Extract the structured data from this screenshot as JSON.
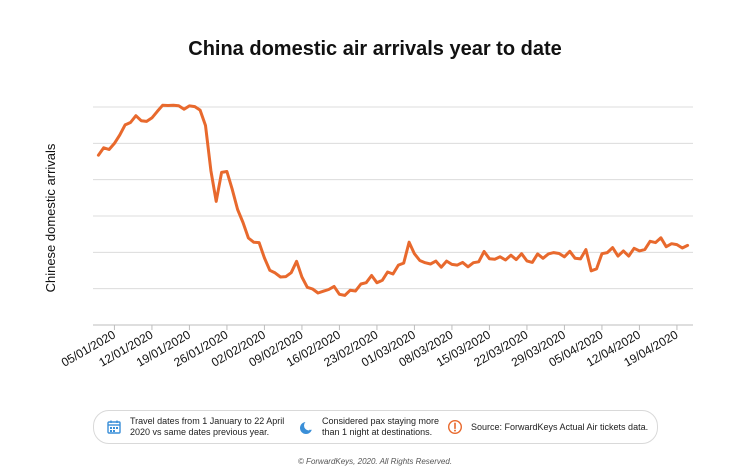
{
  "chart_data": {
    "type": "line",
    "title": "China domestic air arrivals year to date",
    "xlabel": "",
    "ylabel": "Chinese domestic arrivals",
    "x_tick_labels": [
      "05/01/2020",
      "12/01/2020",
      "19/01/2020",
      "26/01/2020",
      "02/02/2020",
      "09/02/2020",
      "16/02/2020",
      "23/02/2020",
      "01/03/2020",
      "08/03/2020",
      "15/03/2020",
      "22/03/2020",
      "29/03/2020",
      "05/04/2020",
      "12/04/2020",
      "19/04/2020"
    ],
    "x_start": "2020-01-01",
    "x_end": "2020-04-22",
    "ylim": [
      0,
      100
    ],
    "grid": true,
    "series_color": "#e8692d",
    "series": [
      {
        "name": "",
        "values": [
          [
            1,
            77.9
          ],
          [
            2,
            81.3
          ],
          [
            3,
            80.5
          ],
          [
            4,
            83.3
          ],
          [
            5,
            87.2
          ],
          [
            6,
            91.8
          ],
          [
            7,
            92.9
          ],
          [
            8,
            96.0
          ],
          [
            9,
            93.7
          ],
          [
            10,
            93.4
          ],
          [
            11,
            95.0
          ],
          [
            12,
            98.0
          ],
          [
            13,
            100.8
          ],
          [
            14,
            100.7
          ],
          [
            15,
            100.8
          ],
          [
            16,
            100.6
          ],
          [
            17,
            99.0
          ],
          [
            18,
            100.5
          ],
          [
            19,
            100.2
          ],
          [
            20,
            98.6
          ],
          [
            21,
            91.5
          ],
          [
            22,
            70.8
          ],
          [
            23,
            56.7
          ],
          [
            24,
            70.0
          ],
          [
            25,
            70.4
          ],
          [
            26,
            62.1
          ],
          [
            27,
            53.0
          ],
          [
            28,
            47.0
          ],
          [
            29,
            39.9
          ],
          [
            30,
            38.0
          ],
          [
            31,
            37.8
          ],
          [
            32,
            30.8
          ],
          [
            33,
            25.1
          ],
          [
            34,
            23.9
          ],
          [
            35,
            22.0
          ],
          [
            36,
            22.2
          ],
          [
            37,
            24.0
          ],
          [
            38,
            29.2
          ],
          [
            39,
            22.0
          ],
          [
            40,
            17.3
          ],
          [
            41,
            16.5
          ],
          [
            42,
            14.7
          ],
          [
            43,
            15.5
          ],
          [
            44,
            16.3
          ],
          [
            45,
            17.7
          ],
          [
            46,
            14.1
          ],
          [
            47,
            13.6
          ],
          [
            48,
            15.9
          ],
          [
            49,
            15.6
          ],
          [
            50,
            18.8
          ],
          [
            51,
            19.4
          ],
          [
            52,
            22.7
          ],
          [
            53,
            19.4
          ],
          [
            54,
            20.5
          ],
          [
            55,
            24.3
          ],
          [
            56,
            23.4
          ],
          [
            57,
            27.5
          ],
          [
            58,
            28.4
          ],
          [
            59,
            38.0
          ],
          [
            60,
            32.7
          ],
          [
            61,
            29.6
          ],
          [
            62,
            28.6
          ],
          [
            63,
            28.0
          ],
          [
            64,
            29.3
          ],
          [
            65,
            26.5
          ],
          [
            66,
            29.3
          ],
          [
            67,
            27.8
          ],
          [
            68,
            27.5
          ],
          [
            69,
            28.7
          ],
          [
            70,
            26.7
          ],
          [
            71,
            28.6
          ],
          [
            72,
            29.0
          ],
          [
            73,
            33.7
          ],
          [
            74,
            30.4
          ],
          [
            75,
            30.2
          ],
          [
            76,
            31.3
          ],
          [
            77,
            29.8
          ],
          [
            78,
            32.0
          ],
          [
            79,
            30.0
          ],
          [
            80,
            32.7
          ],
          [
            81,
            29.4
          ],
          [
            82,
            28.7
          ],
          [
            83,
            32.6
          ],
          [
            84,
            30.6
          ],
          [
            85,
            32.6
          ],
          [
            86,
            33.2
          ],
          [
            87,
            32.8
          ],
          [
            88,
            31.3
          ],
          [
            89,
            33.8
          ],
          [
            90,
            30.6
          ],
          [
            91,
            30.3
          ],
          [
            92,
            34.6
          ],
          [
            93,
            24.8
          ],
          [
            94,
            25.8
          ],
          [
            95,
            32.7
          ],
          [
            96,
            33.2
          ],
          [
            97,
            35.5
          ],
          [
            98,
            31.6
          ],
          [
            99,
            34.0
          ],
          [
            100,
            31.6
          ],
          [
            101,
            35.2
          ],
          [
            102,
            34.0
          ],
          [
            103,
            34.6
          ],
          [
            104,
            38.4
          ],
          [
            105,
            37.8
          ],
          [
            106,
            40.0
          ],
          [
            107,
            35.9
          ],
          [
            108,
            37.3
          ],
          [
            109,
            36.9
          ],
          [
            110,
            35.3
          ],
          [
            111,
            36.5
          ]
        ]
      }
    ]
  },
  "legend": {
    "items": [
      {
        "icon": "calendar-icon",
        "line1": "Travel dates from 1 January to 22 April",
        "line2": "2020 vs same dates previous year."
      },
      {
        "icon": "moon-icon",
        "line1": "Considered pax staying more",
        "line2": "than 1 night at destinations."
      },
      {
        "icon": "info-icon",
        "line1": "Source: ForwardKeys Actual Air tickets data.",
        "line2": ""
      }
    ]
  },
  "footer": {
    "copyright": "© ForwardKeys, 2020. All Rights Reserved."
  }
}
